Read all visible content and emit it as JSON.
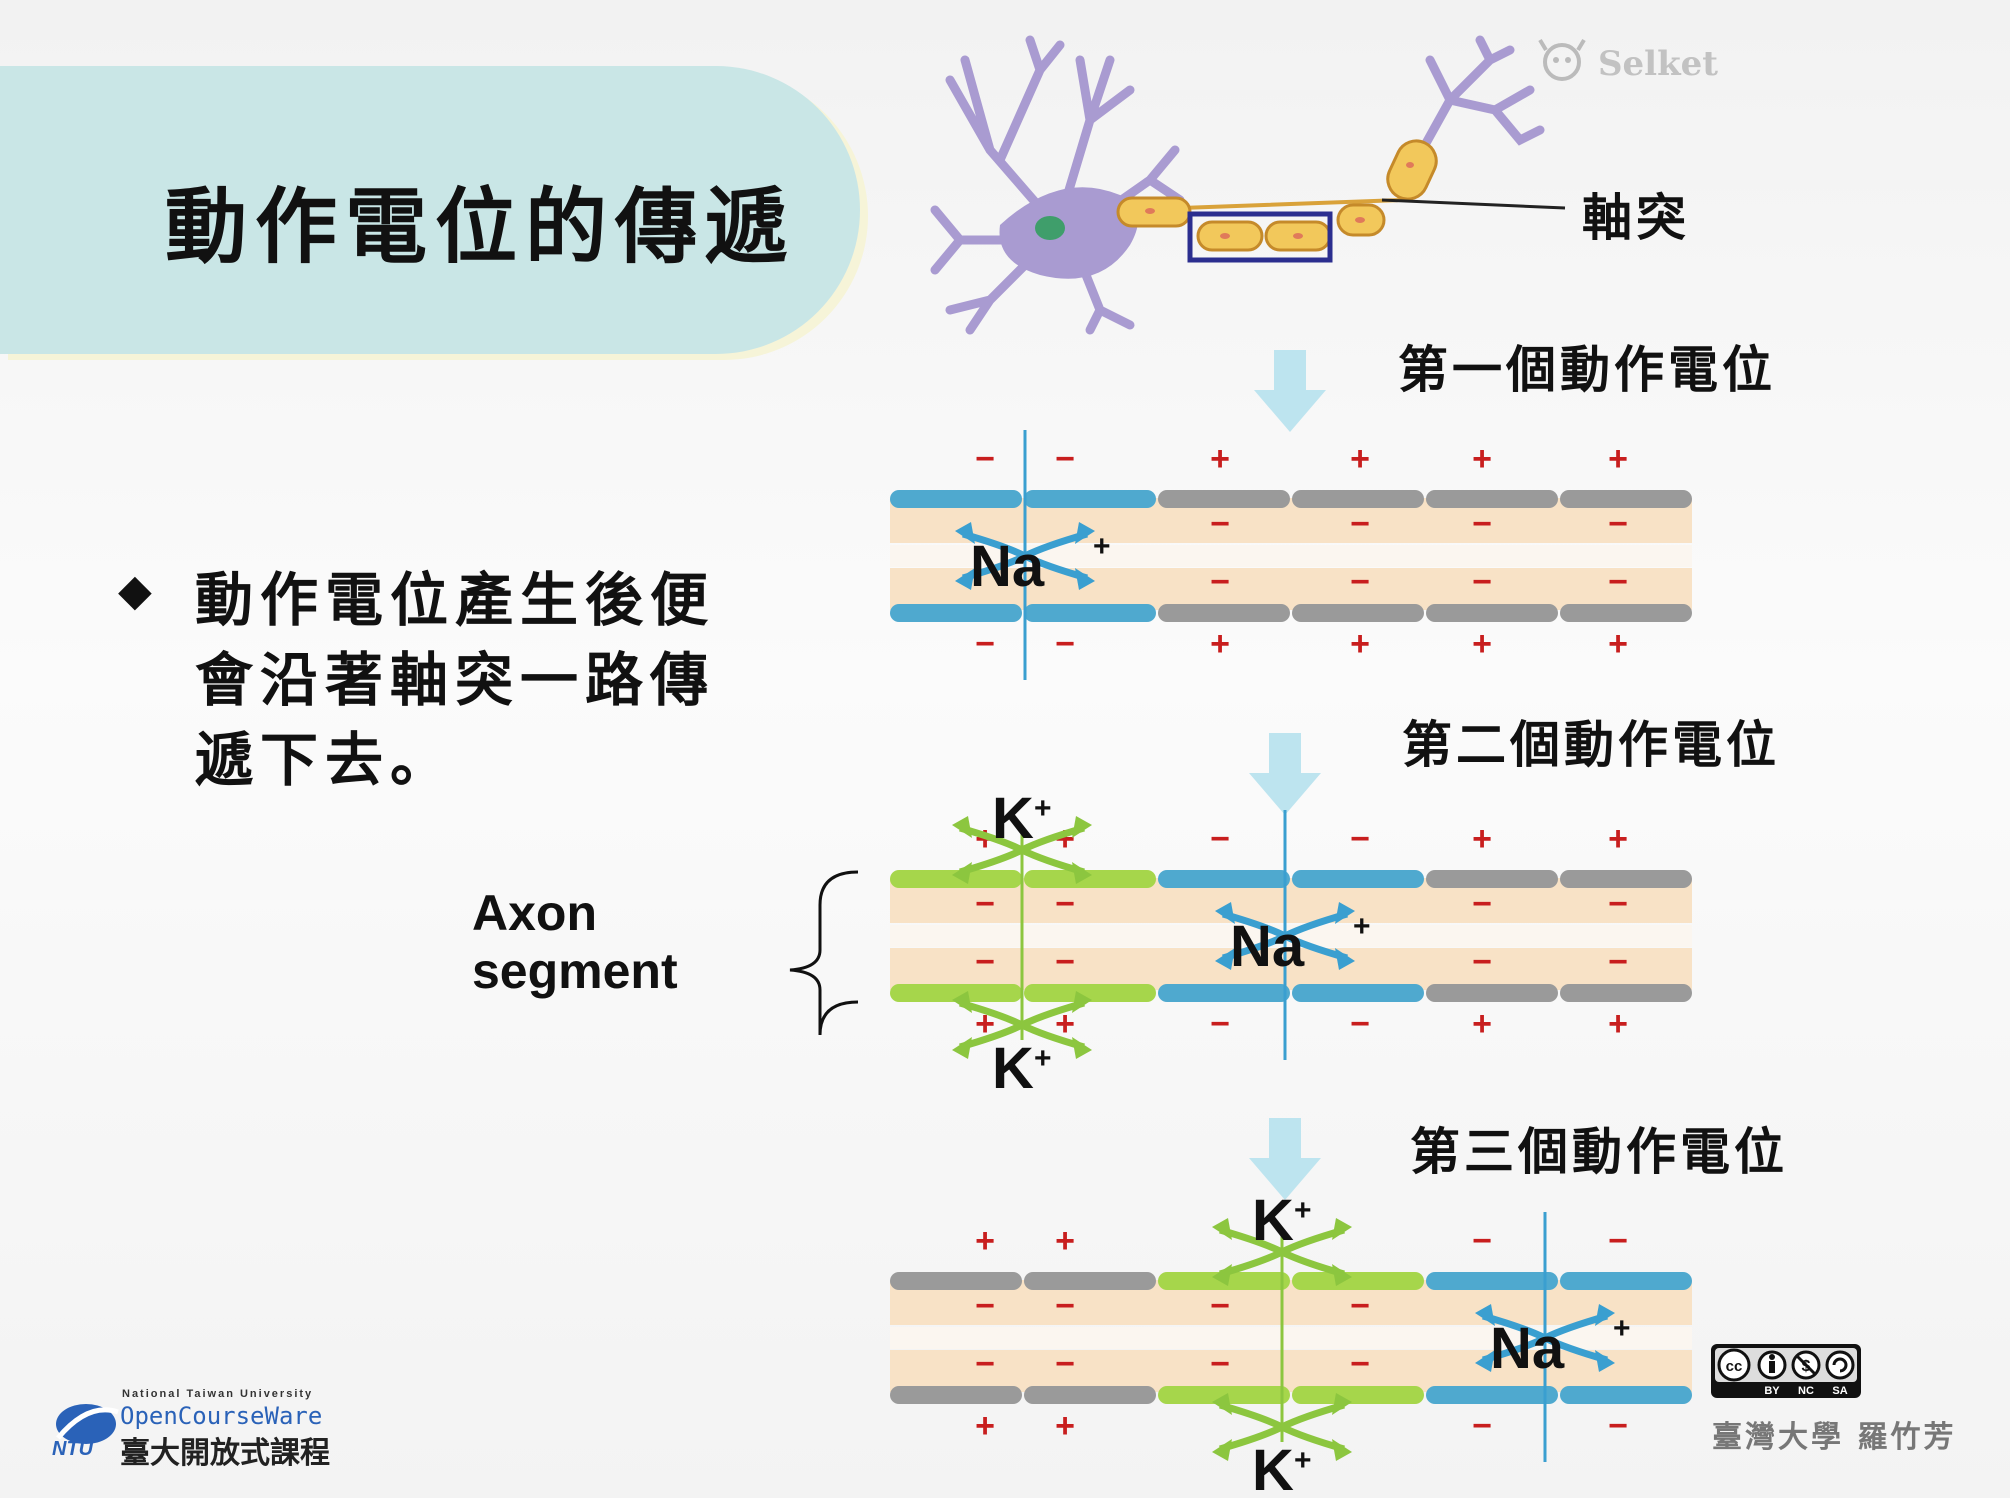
{
  "title": "動作電位的傳遞",
  "bullet": {
    "marker": "◆",
    "text": "動作電位產生後便會沿著軸突一路傳遞下去。"
  },
  "neuron": {
    "axon_label": "軸突",
    "watermark": "Selket"
  },
  "panels": [
    {
      "label": "第一個動作電位",
      "ions": {
        "na": "Na",
        "na_sup": "+"
      }
    },
    {
      "label": "第二個動作電位",
      "ions": {
        "na": "Na",
        "na_sup": "+",
        "k": "K",
        "k_sup": "+"
      }
    },
    {
      "label": "第三個動作電位",
      "ions": {
        "na": "Na",
        "na_sup": "+",
        "k": "K",
        "k_sup": "+"
      }
    }
  ],
  "axon_segment": {
    "line1": "Axon",
    "line2": "segment"
  },
  "footer": {
    "ocw_small": "National Taiwan University",
    "ocw_en": "OpenCourseWare",
    "ocw_cn": "臺大開放式課程",
    "ocw_badge": "NTU",
    "cc_labels": [
      "BY",
      "NC",
      "SA"
    ],
    "author": "臺灣大學 羅竹芳"
  },
  "colors": {
    "title_band": "#c9e6e6",
    "dendrite": "#a99bd1",
    "myelin": "#f2c85b",
    "nucleus": "#3f9e6b",
    "highlight_box": "#2b2e8f",
    "arrow": "#bde4ef",
    "axoplasm": "#f8e2c6",
    "seg_blue": "#4fa9cf",
    "seg_gray": "#9a9a9a",
    "seg_green": "#a6d64b",
    "na_arrow": "#3a9fd0",
    "k_arrow": "#8cc63f",
    "charge": "#c81e1e"
  }
}
